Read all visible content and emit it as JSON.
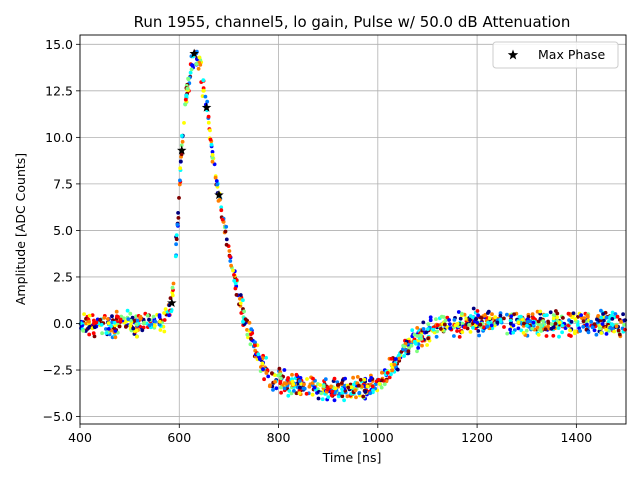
{
  "chart_data": {
    "type": "scatter",
    "title": "Run 1955, channel5, lo gain, Pulse w/ 50.0 dB Attenuation",
    "xlabel": "Time [ns]",
    "ylabel": "Amplitude [ADC Counts]",
    "xlim": [
      400,
      1500
    ],
    "ylim": [
      -5.4,
      15.5
    ],
    "xticks": [
      400,
      600,
      800,
      1000,
      1200,
      1400
    ],
    "xtick_labels": [
      "400",
      "600",
      "800",
      "1000",
      "1200",
      "1400"
    ],
    "yticks": [
      -5.0,
      -2.5,
      0.0,
      2.5,
      5.0,
      7.5,
      10.0,
      12.5,
      15.0
    ],
    "ytick_labels": [
      "−5.0",
      "−2.5",
      "0.0",
      "2.5",
      "5.0",
      "7.5",
      "10.0",
      "12.5",
      "15.0"
    ],
    "grid": true,
    "legend": {
      "placement": "top-right",
      "entries": [
        "Max Phase"
      ]
    },
    "colormap": [
      "#00007f",
      "#0000ff",
      "#007fff",
      "#00ffff",
      "#7fff7f",
      "#ffff00",
      "#ff7f00",
      "#ff0000",
      "#7f0000"
    ],
    "pulse_template": [
      [
        400,
        0.0
      ],
      [
        560,
        0.0
      ],
      [
        575,
        0.2
      ],
      [
        585,
        1.1
      ],
      [
        595,
        4.5
      ],
      [
        605,
        9.3
      ],
      [
        615,
        12.5
      ],
      [
        630,
        14.5
      ],
      [
        640,
        14.0
      ],
      [
        655,
        11.6
      ],
      [
        670,
        8.5
      ],
      [
        680,
        6.9
      ],
      [
        700,
        3.8
      ],
      [
        720,
        1.3
      ],
      [
        740,
        -0.5
      ],
      [
        760,
        -1.9
      ],
      [
        780,
        -2.7
      ],
      [
        800,
        -3.1
      ],
      [
        850,
        -3.4
      ],
      [
        900,
        -3.5
      ],
      [
        950,
        -3.5
      ],
      [
        990,
        -3.4
      ],
      [
        1010,
        -3.1
      ],
      [
        1030,
        -2.4
      ],
      [
        1050,
        -1.5
      ],
      [
        1070,
        -0.9
      ],
      [
        1100,
        -0.4
      ],
      [
        1150,
        -0.1
      ],
      [
        1200,
        0.1
      ],
      [
        1300,
        0.0
      ],
      [
        1500,
        0.0
      ]
    ],
    "noise_amplitude": 0.5,
    "max_phase_series": {
      "name": "Max Phase",
      "marker": "star",
      "color": "#000000",
      "x": [
        585,
        605,
        630,
        655,
        680
      ],
      "y": [
        1.1,
        9.3,
        14.5,
        11.6,
        6.9
      ]
    }
  }
}
